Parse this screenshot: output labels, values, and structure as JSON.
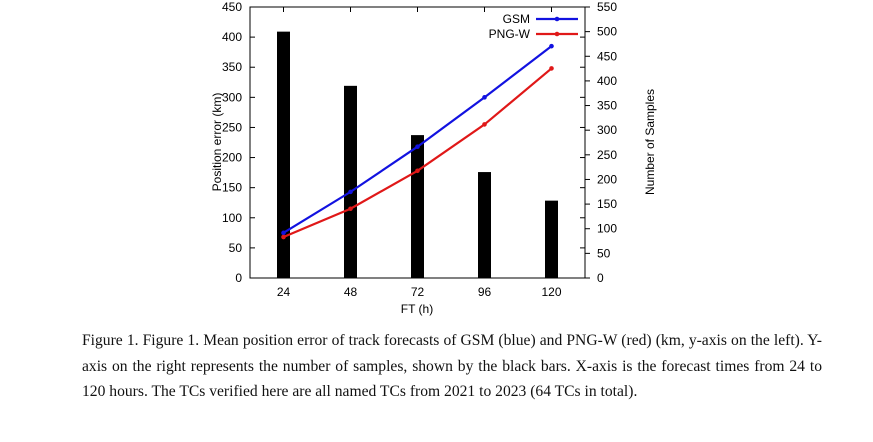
{
  "chart_data": {
    "type": "bar",
    "xlabel": "FT (h)",
    "ylabel": "Position error (km)",
    "y2label": "Number of Samples",
    "categories": [
      "24",
      "48",
      "72",
      "96",
      "120"
    ],
    "ylim": [
      0,
      450
    ],
    "y_ticks": [
      "0",
      "50",
      "100",
      "150",
      "200",
      "250",
      "300",
      "350",
      "400",
      "450"
    ],
    "y2lim": [
      0,
      550
    ],
    "y2_ticks": [
      "0",
      "50",
      "100",
      "150",
      "200",
      "250",
      "300",
      "350",
      "400",
      "450",
      "500",
      "550"
    ],
    "grid": false,
    "legend_position": "top-right",
    "bars": {
      "axis": "right",
      "color": "#000000",
      "values": [
        500,
        390,
        290,
        215,
        157
      ]
    },
    "series": [
      {
        "name": "GSM",
        "axis": "left",
        "color": "#1212e0",
        "values": [
          75,
          143,
          218,
          300,
          385
        ]
      },
      {
        "name": "PNG-W",
        "axis": "left",
        "color": "#e01818",
        "values": [
          68,
          115,
          178,
          255,
          348
        ]
      }
    ]
  },
  "caption": {
    "text": "Figure 1. Figure 1. Mean position error of track forecasts of GSM (blue) and PNG-W (red) (km, y-axis on the left). Y-axis on the right represents the number of samples, shown by the black bars. X-axis is the forecast times from 24 to 120 hours. The TCs verified here are all named TCs from 2021 to 2023 (64 TCs in total)."
  }
}
